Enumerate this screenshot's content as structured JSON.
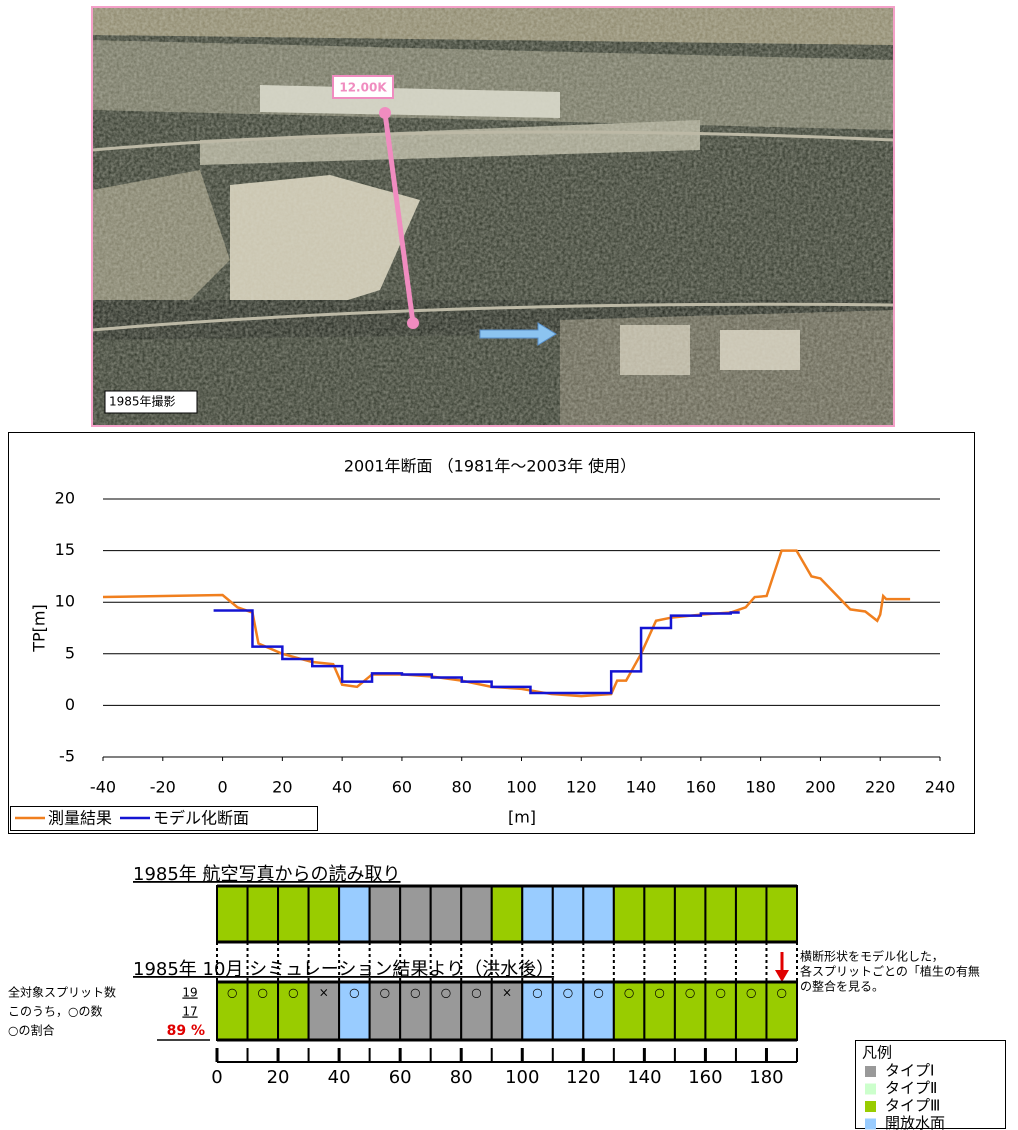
{
  "photo": {
    "marker_label": "12.00K",
    "caption": "1985年撮影"
  },
  "chart_data": [
    {
      "type": "line",
      "title": "2001年断面 （1981年～2003年 使用）",
      "x_label": "[m]",
      "y_label": "TP[m]",
      "xlim": [
        -40,
        240
      ],
      "xticks": [
        -40,
        -20,
        0,
        20,
        40,
        60,
        80,
        100,
        120,
        140,
        160,
        180,
        200,
        220,
        240
      ],
      "ylim": [
        -5,
        20
      ],
      "yticks": [
        -5,
        0,
        5,
        10,
        15,
        20
      ],
      "grid": true,
      "legend": "lower left",
      "series": [
        {
          "name": "測量結果",
          "color": "#f07f1e",
          "x": [
            -40,
            0,
            5,
            10,
            12,
            20,
            30,
            37,
            40,
            45,
            50,
            60,
            70,
            80,
            90,
            100,
            110,
            120,
            130,
            132,
            135,
            140,
            145,
            150,
            160,
            170,
            175,
            178,
            182,
            187,
            192,
            197,
            200,
            210,
            215,
            219,
            220,
            221,
            222,
            230
          ],
          "values": [
            10.5,
            10.7,
            9.5,
            9,
            6,
            5,
            4.2,
            4,
            2,
            1.8,
            3,
            3,
            2.8,
            2.4,
            1.8,
            1.6,
            1.1,
            0.9,
            1.1,
            2.4,
            2.4,
            5,
            8.2,
            8.5,
            8.8,
            9,
            9.5,
            10.5,
            10.6,
            15,
            15,
            12.5,
            12.3,
            9.3,
            9.1,
            8.2,
            8.8,
            10.6,
            10.3,
            10.3
          ]
        },
        {
          "name": "モデル化断面",
          "color": "#1414d2",
          "x": [
            -3,
            10,
            10,
            20,
            20,
            30,
            30,
            40,
            40,
            50,
            50,
            60,
            60,
            70,
            70,
            80,
            80,
            90,
            90,
            103,
            103,
            130,
            130,
            140,
            140,
            150,
            150,
            160,
            160,
            170,
            170,
            173
          ],
          "values": [
            9.2,
            9.2,
            5.7,
            5.7,
            4.5,
            4.5,
            3.8,
            3.8,
            2.3,
            2.3,
            3.1,
            3.1,
            3.0,
            3.0,
            2.7,
            2.7,
            2.3,
            2.3,
            1.8,
            1.8,
            1.2,
            1.2,
            3.3,
            3.3,
            7.5,
            7.5,
            8.7,
            8.7,
            8.9,
            8.9,
            9.0,
            9.0
          ]
        }
      ]
    },
    {
      "type": "split-strip",
      "xlim": [
        0,
        190
      ],
      "xticks": [
        0,
        20,
        40,
        60,
        80,
        100,
        120,
        140,
        160,
        180
      ],
      "splits": [
        0,
        10,
        20,
        30,
        40,
        50,
        60,
        70,
        80,
        90,
        100,
        110,
        120,
        130,
        140,
        150,
        160,
        170,
        180
      ],
      "legend_title": "凡例",
      "legend": [
        {
          "name": "タイプⅠ",
          "color": "#999999"
        },
        {
          "name": "タイプⅡ",
          "color": "#ccffcc"
        },
        {
          "name": "タイプⅢ",
          "color": "#99cc00"
        },
        {
          "name": "開放水面",
          "color": "#99ccff"
        }
      ],
      "rows": [
        {
          "title": "1985年 航空写真からの読み取り",
          "types": [
            2,
            2,
            2,
            2,
            3,
            0,
            0,
            0,
            0,
            2,
            3,
            3,
            3,
            2,
            2,
            2,
            2,
            2,
            2
          ]
        },
        {
          "title": "1985年 10月 シミュレーション結果より（洪水後）",
          "types": [
            2,
            2,
            2,
            0,
            3,
            0,
            0,
            0,
            0,
            0,
            3,
            3,
            3,
            2,
            2,
            2,
            2,
            2,
            2
          ],
          "marks": [
            "○",
            "○",
            "○",
            "×",
            "○",
            "○",
            "○",
            "○",
            "○",
            "×",
            "○",
            "○",
            "○",
            "○",
            "○",
            "○",
            "○",
            "○",
            "○"
          ]
        }
      ],
      "stats": [
        {
          "label": "全対象スプリット数",
          "value": 19
        },
        {
          "label": "このうち，○の数",
          "value": 17
        },
        {
          "label": "○の割合",
          "value": 89,
          "value_label": "89 %"
        }
      ],
      "annotation": [
        "横断形状をモデル化した，",
        "各スプリットごとの「植生の有無",
        "の整合を見る。"
      ]
    }
  ]
}
